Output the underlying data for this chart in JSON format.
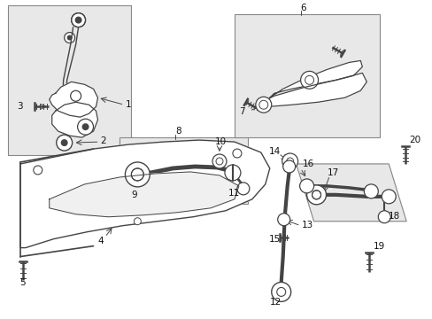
{
  "background_color": "#ffffff",
  "fig_width": 4.89,
  "fig_height": 3.6,
  "dpi": 100,
  "gray": "#444444",
  "box_fill": "#e8e8e8",
  "box_edge": "#888888",
  "label_fontsize": 7.5,
  "label_color": "#111111"
}
